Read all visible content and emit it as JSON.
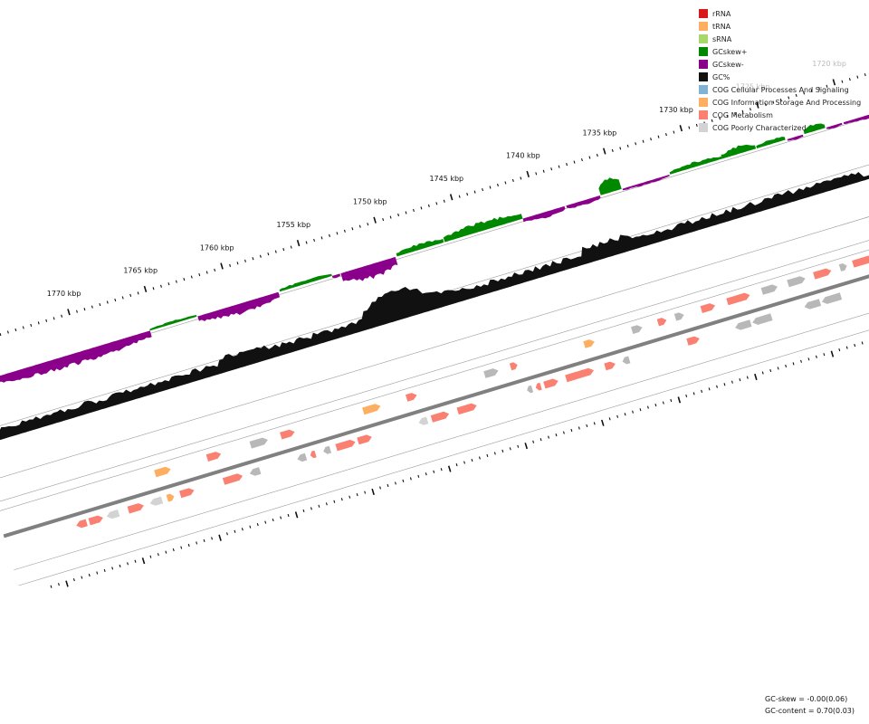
{
  "colors": {
    "rRNA": "#d7191c",
    "tRNA": "#fdae61",
    "sRNA": "#a6d96a",
    "gc_skew_plus": "#008800",
    "gc_skew_minus": "#8b008b",
    "gc_percent": "#111111",
    "cog_cellular": "#7fb2d5",
    "cog_information": "#fdae61",
    "cog_metabolism": "#fa8072",
    "cog_poorly": "#d3d3d3",
    "gene_other": "#b8b8b8",
    "backbone": "#808080"
  },
  "legend": [
    {
      "label": "rRNA",
      "color": "#d7191c"
    },
    {
      "label": "tRNA",
      "color": "#fdae61"
    },
    {
      "label": "sRNA",
      "color": "#a6d96a"
    },
    {
      "label": "GCskew+",
      "color": "#008800"
    },
    {
      "label": "GCskew-",
      "color": "#8b008b"
    },
    {
      "label": "GC%",
      "color": "#111111"
    },
    {
      "label": "COG Cellular Processes And Signaling",
      "color": "#7fb2d5"
    },
    {
      "label": "COG Information Storage And Processing",
      "color": "#fdae61"
    },
    {
      "label": "COG Metabolism",
      "color": "#fa8072"
    },
    {
      "label": "COG Poorly Characterized",
      "color": "#d3d3d3"
    }
  ],
  "scale": {
    "unit": "kbp",
    "labels": [
      {
        "kbp": 1720,
        "text": "1720 kbp",
        "faded": true
      },
      {
        "kbp": 1725,
        "text": "1725 kbp",
        "faded": true
      },
      {
        "kbp": 1730,
        "text": "1730 kbp",
        "faded": false
      },
      {
        "kbp": 1735,
        "text": "1735 kbp",
        "faded": false
      },
      {
        "kbp": 1740,
        "text": "1740 kbp",
        "faded": false
      },
      {
        "kbp": 1745,
        "text": "1745 kbp",
        "faded": false
      },
      {
        "kbp": 1750,
        "text": "1750 kbp",
        "faded": false
      },
      {
        "kbp": 1755,
        "text": "1755 kbp",
        "faded": false
      },
      {
        "kbp": 1760,
        "text": "1760 kbp",
        "faded": false
      },
      {
        "kbp": 1765,
        "text": "1765 kbp",
        "faded": false
      },
      {
        "kbp": 1770,
        "text": "1770 kbp",
        "faded": false
      }
    ]
  },
  "stats": {
    "gc_skew": "GC-skew = -0.00(0.06)",
    "gc_content": "GC-content = 0.70(0.03)"
  }
}
